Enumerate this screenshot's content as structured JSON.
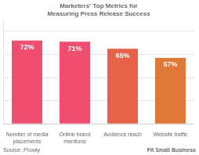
{
  "chart_data": {
    "type": "bar",
    "title": "Marketers’ Top Metrics for Measuring Press Release Success",
    "categories": [
      "Number of media\nplacements",
      "Online brand\nmentions",
      "Audience reach",
      "Website traffic"
    ],
    "values": [
      72,
      71,
      65,
      57
    ],
    "value_labels": [
      "72%",
      "71%",
      "65%",
      "57%"
    ],
    "data_labels": true,
    "colors": [
      "#f04e6e",
      "#f04e6e",
      "#e8624a",
      "#e07838"
    ],
    "ylim": [
      0,
      90
    ],
    "yticks": [
      0,
      20,
      40,
      60,
      80
    ],
    "grid": true,
    "tick_labels": "x",
    "annotations": [
      "Source: Prowly",
      "Fit Small Business"
    ]
  }
}
